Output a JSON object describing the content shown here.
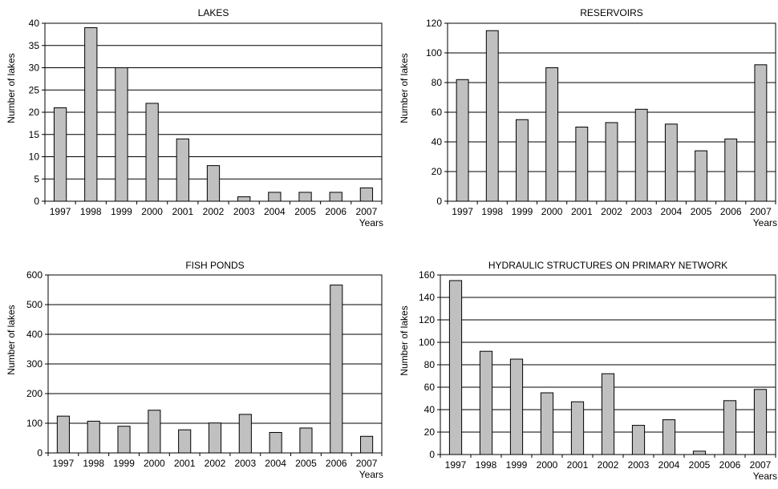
{
  "chart_data": [
    {
      "type": "bar",
      "title": "LAKES",
      "xlabel": "Years",
      "ylabel": "Number of lakes",
      "categories": [
        "1997",
        "1998",
        "1999",
        "2000",
        "2001",
        "2002",
        "2003",
        "2004",
        "2005",
        "2006",
        "2007"
      ],
      "values": [
        21,
        39,
        30,
        22,
        14,
        8,
        1,
        2,
        2,
        2,
        3
      ],
      "ylim": [
        0,
        40
      ],
      "yticks": [
        0,
        5,
        10,
        15,
        20,
        25,
        30,
        35,
        40
      ],
      "grid": true,
      "bar_color": "#c0c0c0"
    },
    {
      "type": "bar",
      "title": "RESERVOIRS",
      "xlabel": "Years",
      "ylabel": "Number of lakes",
      "categories": [
        "1997",
        "1998",
        "1999",
        "2000",
        "2001",
        "2002",
        "2003",
        "2004",
        "2005",
        "2006",
        "2007"
      ],
      "values": [
        82,
        115,
        55,
        90,
        50,
        53,
        62,
        52,
        34,
        42,
        92
      ],
      "ylim": [
        0,
        120
      ],
      "yticks": [
        0,
        20,
        40,
        60,
        80,
        100,
        120
      ],
      "grid": true,
      "bar_color": "#c0c0c0"
    },
    {
      "type": "bar",
      "title": "FISH PONDS",
      "xlabel": "Years",
      "ylabel": "Number of lakes",
      "categories": [
        "1997",
        "1998",
        "1999",
        "2000",
        "2001",
        "2002",
        "2003",
        "2004",
        "2005",
        "2006",
        "2007"
      ],
      "values": [
        124,
        107,
        90,
        144,
        78,
        101,
        130,
        69,
        84,
        566,
        56
      ],
      "ylim": [
        0,
        600
      ],
      "yticks": [
        0,
        100,
        200,
        300,
        400,
        500,
        600
      ],
      "grid": true,
      "bar_color": "#c0c0c0"
    },
    {
      "type": "bar",
      "title": "HYDRAULIC STRUCTURES ON PRIMARY NETWORK",
      "xlabel": "Years",
      "ylabel": "Number of lakes",
      "categories": [
        "1997",
        "1998",
        "1999",
        "2000",
        "2001",
        "2002",
        "2003",
        "2004",
        "2005",
        "2006",
        "2007"
      ],
      "values": [
        155,
        92,
        85,
        55,
        47,
        72,
        26,
        31,
        3,
        48,
        58
      ],
      "ylim": [
        0,
        160
      ],
      "yticks": [
        0,
        20,
        40,
        60,
        80,
        100,
        120,
        140,
        160
      ],
      "grid": true,
      "bar_color": "#c0c0c0"
    }
  ]
}
